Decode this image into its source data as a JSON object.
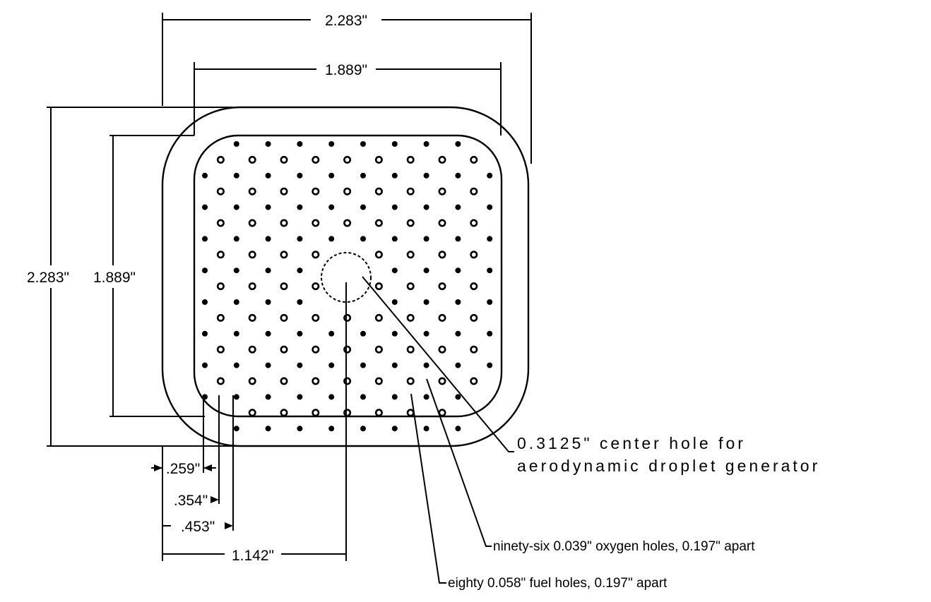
{
  "dimensions": {
    "outer_width": "2.283\"",
    "inner_width": "1.889\"",
    "outer_height": "2.283\"",
    "inner_height": "1.889\"",
    "offset_1": ".259\"",
    "offset_2": ".354\"",
    "offset_3": ".453\"",
    "offset_center": "1.142\""
  },
  "callouts": {
    "center_hole_line1": "0.3125\" center hole for",
    "center_hole_line2": "aerodynamic droplet generator",
    "oxygen_holes": "ninety-six 0.039\" oxygen holes, 0.197\" apart",
    "fuel_holes": "eighty 0.058\" fuel holes, 0.197\" apart"
  },
  "holes": {
    "oxygen_count": 96,
    "fuel_count": 80
  },
  "colors": {
    "ink": "#000000",
    "paper": "#ffffff"
  }
}
